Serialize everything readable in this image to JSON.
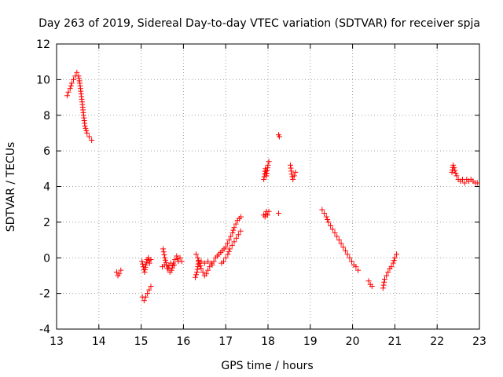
{
  "chart_data": {
    "type": "scatter",
    "title": "Day 263 of 2019, Sidereal Day-to-day VTEC variation (SDTVAR) for receiver spja",
    "xlabel": "GPS time / hours",
    "ylabel": "SDTVAR / TECUs",
    "xlim": [
      13,
      23
    ],
    "ylim": [
      -4,
      12
    ],
    "xticks": [
      13,
      14,
      15,
      16,
      17,
      18,
      19,
      20,
      21,
      22,
      23
    ],
    "yticks": [
      -4,
      -2,
      0,
      2,
      4,
      6,
      8,
      10,
      12
    ],
    "grid": true,
    "marker": "+",
    "color": "#ff0000",
    "series": [
      {
        "name": "SDTVAR",
        "segments": [
          [
            [
              13.25,
              9.1
            ],
            [
              13.28,
              9.3
            ],
            [
              13.32,
              9.5
            ],
            [
              13.36,
              9.8
            ],
            [
              13.4,
              10.0
            ],
            [
              13.44,
              10.2
            ],
            [
              13.48,
              10.4
            ],
            [
              13.52,
              10.2
            ],
            [
              13.55,
              9.8
            ],
            [
              13.58,
              9.2
            ],
            [
              13.61,
              8.6
            ],
            [
              13.64,
              8.0
            ],
            [
              13.67,
              7.4
            ],
            [
              13.72,
              7.0
            ],
            [
              13.77,
              6.8
            ],
            [
              13.83,
              6.6
            ]
          ],
          [
            [
              14.42,
              -0.8
            ],
            [
              14.45,
              -1.0
            ],
            [
              14.48,
              -0.9
            ],
            [
              14.52,
              -0.7
            ]
          ],
          [
            [
              15.02,
              -0.2
            ],
            [
              15.05,
              -0.5
            ],
            [
              15.08,
              -0.8
            ],
            [
              15.11,
              -0.4
            ],
            [
              15.14,
              -0.1
            ],
            [
              15.17,
              0.0
            ],
            [
              15.2,
              -0.3
            ],
            [
              15.23,
              -0.1
            ]
          ],
          [
            [
              15.03,
              -2.2
            ],
            [
              15.07,
              -2.4
            ],
            [
              15.11,
              -2.2
            ],
            [
              15.15,
              -2.0
            ],
            [
              15.19,
              -1.8
            ],
            [
              15.23,
              -1.6
            ]
          ],
          [
            [
              15.52,
              0.5
            ],
            [
              15.56,
              0.0
            ],
            [
              15.6,
              -0.4
            ],
            [
              15.64,
              -0.6
            ],
            [
              15.68,
              -0.8
            ],
            [
              15.72,
              -0.7
            ],
            [
              15.76,
              -0.3
            ],
            [
              15.8,
              -0.1
            ],
            [
              15.84,
              0.1
            ],
            [
              15.88,
              -0.2
            ],
            [
              15.92,
              0.0
            ],
            [
              15.96,
              -0.2
            ]
          ],
          [
            [
              15.5,
              -0.5
            ],
            [
              15.55,
              -0.4
            ],
            [
              15.62,
              -0.6
            ],
            [
              15.7,
              -0.3
            ],
            [
              15.78,
              -0.4
            ]
          ],
          [
            [
              16.3,
              0.2
            ],
            [
              16.34,
              0.0
            ],
            [
              16.38,
              -0.3
            ],
            [
              16.42,
              -0.6
            ],
            [
              16.46,
              -0.8
            ],
            [
              16.5,
              -1.0
            ],
            [
              16.54,
              -0.9
            ],
            [
              16.58,
              -0.7
            ],
            [
              16.62,
              -0.5
            ],
            [
              16.66,
              -0.3
            ]
          ],
          [
            [
              16.28,
              -1.1
            ],
            [
              16.32,
              -0.8
            ],
            [
              16.36,
              -0.2
            ],
            [
              16.42,
              -0.2
            ],
            [
              16.5,
              -0.3
            ],
            [
              16.58,
              -0.2
            ]
          ],
          [
            [
              16.68,
              -0.4
            ],
            [
              16.72,
              -0.2
            ],
            [
              16.76,
              0.0
            ],
            [
              16.8,
              0.1
            ],
            [
              16.84,
              0.2
            ],
            [
              16.88,
              0.3
            ],
            [
              16.92,
              0.4
            ],
            [
              16.96,
              0.5
            ],
            [
              17.0,
              0.6
            ],
            [
              17.04,
              0.8
            ],
            [
              17.08,
              1.0
            ],
            [
              17.12,
              1.2
            ],
            [
              17.16,
              1.4
            ],
            [
              17.2,
              1.7
            ],
            [
              17.24,
              1.9
            ],
            [
              17.28,
              2.1
            ],
            [
              17.32,
              2.2
            ],
            [
              17.36,
              2.3
            ]
          ],
          [
            [
              16.9,
              -0.3
            ],
            [
              16.95,
              -0.2
            ],
            [
              17.0,
              0.0
            ],
            [
              17.05,
              0.2
            ],
            [
              17.1,
              0.5
            ],
            [
              17.15,
              0.7
            ],
            [
              17.2,
              0.9
            ],
            [
              17.25,
              1.1
            ],
            [
              17.3,
              1.3
            ],
            [
              17.35,
              1.5
            ]
          ],
          [
            [
              17.9,
              4.4
            ],
            [
              17.92,
              4.7
            ],
            [
              17.94,
              5.0
            ],
            [
              17.96,
              4.6
            ],
            [
              17.98,
              4.9
            ],
            [
              18.0,
              5.2
            ],
            [
              18.02,
              5.4
            ]
          ],
          [
            [
              17.9,
              2.4
            ],
            [
              17.93,
              2.3
            ],
            [
              17.96,
              2.6
            ],
            [
              17.99,
              2.4
            ],
            [
              18.02,
              2.6
            ]
          ],
          [
            [
              18.25,
              6.9
            ],
            [
              18.27,
              6.8
            ]
          ],
          [
            [
              18.25,
              2.5
            ]
          ],
          [
            [
              18.53,
              5.2
            ],
            [
              18.56,
              4.7
            ],
            [
              18.59,
              4.4
            ],
            [
              18.62,
              4.6
            ],
            [
              18.65,
              4.8
            ]
          ],
          [
            [
              19.28,
              2.7
            ],
            [
              19.33,
              2.5
            ],
            [
              19.38,
              2.3
            ],
            [
              19.43,
              2.0
            ],
            [
              19.48,
              1.8
            ],
            [
              19.53,
              1.6
            ],
            [
              19.58,
              1.4
            ],
            [
              19.63,
              1.2
            ],
            [
              19.68,
              1.0
            ],
            [
              19.73,
              0.8
            ],
            [
              19.78,
              0.6
            ],
            [
              19.83,
              0.4
            ],
            [
              19.88,
              0.2
            ],
            [
              19.93,
              0.0
            ],
            [
              19.98,
              -0.2
            ],
            [
              20.03,
              -0.4
            ],
            [
              20.08,
              -0.5
            ],
            [
              20.13,
              -0.7
            ]
          ],
          [
            [
              20.38,
              -1.3
            ],
            [
              20.42,
              -1.5
            ],
            [
              20.46,
              -1.6
            ]
          ],
          [
            [
              20.72,
              -1.7
            ],
            [
              20.76,
              -1.2
            ],
            [
              20.8,
              -1.0
            ],
            [
              20.84,
              -0.8
            ],
            [
              20.88,
              -0.6
            ],
            [
              20.92,
              -0.5
            ],
            [
              20.96,
              -0.3
            ],
            [
              21.0,
              0.0
            ],
            [
              21.04,
              0.2
            ]
          ],
          [
            [
              22.35,
              4.8
            ],
            [
              22.38,
              5.2
            ],
            [
              22.42,
              4.9
            ],
            [
              22.46,
              4.6
            ],
            [
              22.5,
              4.4
            ],
            [
              22.55,
              4.3
            ],
            [
              22.6,
              4.4
            ],
            [
              22.65,
              4.2
            ],
            [
              22.7,
              4.4
            ],
            [
              22.75,
              4.3
            ],
            [
              22.8,
              4.4
            ],
            [
              22.85,
              4.3
            ],
            [
              22.9,
              4.2
            ],
            [
              22.95,
              4.2
            ]
          ]
        ]
      }
    ]
  }
}
